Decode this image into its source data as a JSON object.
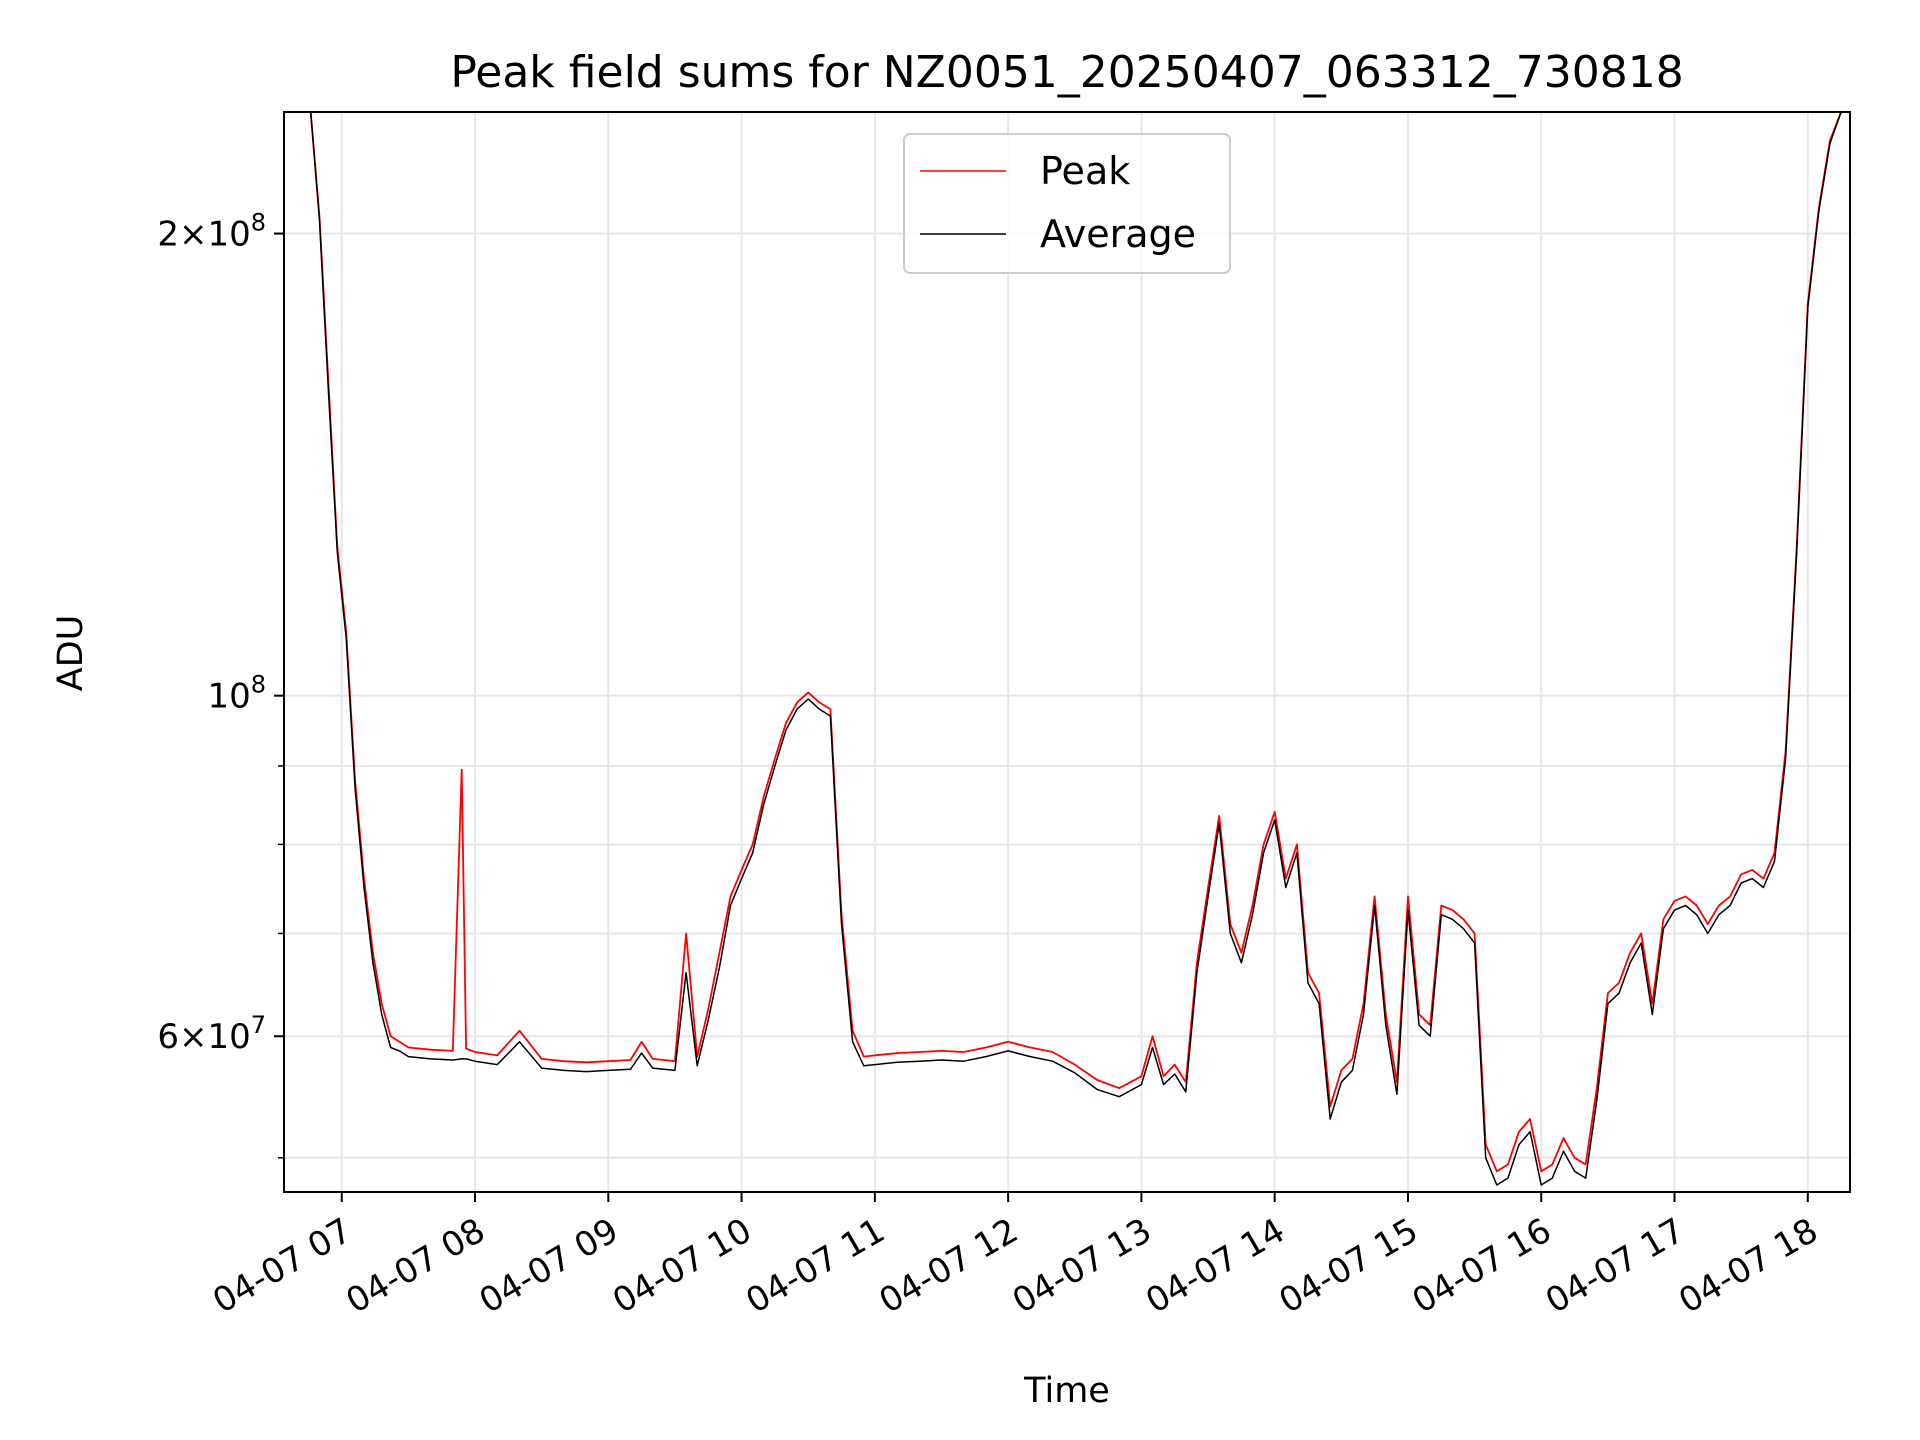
{
  "chart_data": {
    "type": "line",
    "title": "Peak field sums for NZ0051_20250407_063312_730818",
    "xlabel": "Time",
    "ylabel": "ADU",
    "yscale": "log",
    "grid": true,
    "legend": "top-center",
    "xlim": [
      "04-07 06:34",
      "04-07 18:19"
    ],
    "ylim": [
      47500000,
      240000000
    ],
    "x_ticks": [
      "04-07 07",
      "04-07 08",
      "04-07 09",
      "04-07 10",
      "04-07 11",
      "04-07 12",
      "04-07 13",
      "04-07 14",
      "04-07 15",
      "04-07 16",
      "04-07 17",
      "04-07 18"
    ],
    "y_major_ticks": [
      {
        "value": 60000000,
        "mantissa": "6",
        "exponent": "7"
      },
      {
        "value": 100000000,
        "mantissa": "",
        "exponent": "8"
      },
      {
        "value": 200000000,
        "mantissa": "2",
        "exponent": "8"
      }
    ],
    "y_minor_ticks": [
      50000000,
      70000000,
      80000000,
      90000000
    ],
    "series": [
      {
        "name": "Peak",
        "color": "#ff0000",
        "x": [
          "04-07 06:46",
          "04-07 06:50",
          "04-07 06:54",
          "04-07 06:58",
          "04-07 07:02",
          "04-07 07:06",
          "04-07 07:10",
          "04-07 07:14",
          "04-07 07:18",
          "04-07 07:22",
          "04-07 07:26",
          "04-07 07:30",
          "04-07 07:40",
          "04-07 07:50",
          "04-07 07:54",
          "04-07 07:56",
          "04-07 08:00",
          "04-07 08:10",
          "04-07 08:20",
          "04-07 08:30",
          "04-07 08:40",
          "04-07 08:50",
          "04-07 09:00",
          "04-07 09:10",
          "04-07 09:15",
          "04-07 09:20",
          "04-07 09:25",
          "04-07 09:30",
          "04-07 09:35",
          "04-07 09:40",
          "04-07 09:45",
          "04-07 09:50",
          "04-07 09:55",
          "04-07 10:00",
          "04-07 10:05",
          "04-07 10:10",
          "04-07 10:15",
          "04-07 10:20",
          "04-07 10:25",
          "04-07 10:30",
          "04-07 10:35",
          "04-07 10:40",
          "04-07 10:45",
          "04-07 10:50",
          "04-07 10:55",
          "04-07 11:00",
          "04-07 11:10",
          "04-07 11:20",
          "04-07 11:30",
          "04-07 11:40",
          "04-07 11:50",
          "04-07 12:00",
          "04-07 12:10",
          "04-07 12:20",
          "04-07 12:30",
          "04-07 12:40",
          "04-07 12:50",
          "04-07 13:00",
          "04-07 13:05",
          "04-07 13:10",
          "04-07 13:15",
          "04-07 13:20",
          "04-07 13:25",
          "04-07 13:30",
          "04-07 13:35",
          "04-07 13:40",
          "04-07 13:45",
          "04-07 13:50",
          "04-07 13:55",
          "04-07 14:00",
          "04-07 14:05",
          "04-07 14:10",
          "04-07 14:15",
          "04-07 14:20",
          "04-07 14:25",
          "04-07 14:30",
          "04-07 14:35",
          "04-07 14:40",
          "04-07 14:45",
          "04-07 14:50",
          "04-07 14:55",
          "04-07 15:00",
          "04-07 15:05",
          "04-07 15:10",
          "04-07 15:15",
          "04-07 15:20",
          "04-07 15:25",
          "04-07 15:30",
          "04-07 15:35",
          "04-07 15:40",
          "04-07 15:45",
          "04-07 15:50",
          "04-07 15:55",
          "04-07 16:00",
          "04-07 16:05",
          "04-07 16:10",
          "04-07 16:15",
          "04-07 16:20",
          "04-07 16:25",
          "04-07 16:30",
          "04-07 16:35",
          "04-07 16:40",
          "04-07 16:45",
          "04-07 16:50",
          "04-07 16:55",
          "04-07 17:00",
          "04-07 17:05",
          "04-07 17:10",
          "04-07 17:15",
          "04-07 17:20",
          "04-07 17:25",
          "04-07 17:30",
          "04-07 17:35",
          "04-07 17:40",
          "04-07 17:45",
          "04-07 17:50",
          "04-07 17:55",
          "04-07 18:00",
          "04-07 18:05",
          "04-07 18:10",
          "04-07 18:15"
        ],
        "y": [
          240000000,
          205000000,
          160000000,
          125000000,
          110000000,
          88000000,
          76000000,
          68000000,
          63000000,
          60000000,
          59500000,
          59000000,
          58800000,
          58700000,
          89500000,
          58900000,
          58600000,
          58300000,
          60500000,
          58000000,
          57800000,
          57700000,
          57800000,
          57900000,
          59500000,
          58000000,
          57900000,
          57800000,
          70000000,
          58200000,
          62500000,
          68000000,
          74000000,
          77000000,
          80000000,
          86000000,
          91000000,
          96000000,
          99000000,
          100500000,
          99000000,
          98000000,
          72000000,
          60500000,
          58200000,
          58300000,
          58500000,
          58600000,
          58700000,
          58600000,
          59000000,
          59500000,
          59000000,
          58600000,
          57500000,
          56200000,
          55500000,
          56500000,
          60000000,
          56500000,
          57500000,
          56000000,
          67000000,
          75000000,
          83500000,
          71000000,
          68000000,
          73000000,
          80000000,
          84000000,
          76000000,
          80000000,
          66000000,
          64000000,
          54000000,
          57000000,
          58000000,
          63000000,
          74000000,
          62000000,
          56000000,
          74000000,
          62000000,
          61000000,
          73000000,
          72500000,
          71500000,
          70000000,
          51000000,
          49000000,
          49500000,
          52000000,
          53000000,
          49000000,
          49500000,
          51500000,
          50000000,
          49500000,
          55500000,
          64000000,
          65000000,
          68000000,
          70000000,
          63000000,
          71500000,
          73500000,
          74000000,
          73000000,
          71000000,
          73000000,
          74000000,
          76500000,
          77000000,
          76000000,
          79000000,
          92000000,
          125000000,
          180000000,
          208000000,
          230000000,
          240000000
        ]
      },
      {
        "name": "Average",
        "color": "#000000",
        "x": [
          "04-07 06:46",
          "04-07 06:50",
          "04-07 06:54",
          "04-07 06:58",
          "04-07 07:02",
          "04-07 07:06",
          "04-07 07:10",
          "04-07 07:14",
          "04-07 07:18",
          "04-07 07:22",
          "04-07 07:26",
          "04-07 07:30",
          "04-07 07:40",
          "04-07 07:50",
          "04-07 07:54",
          "04-07 07:56",
          "04-07 08:00",
          "04-07 08:10",
          "04-07 08:20",
          "04-07 08:30",
          "04-07 08:40",
          "04-07 08:50",
          "04-07 09:00",
          "04-07 09:10",
          "04-07 09:15",
          "04-07 09:20",
          "04-07 09:25",
          "04-07 09:30",
          "04-07 09:35",
          "04-07 09:40",
          "04-07 09:45",
          "04-07 09:50",
          "04-07 09:55",
          "04-07 10:00",
          "04-07 10:05",
          "04-07 10:10",
          "04-07 10:15",
          "04-07 10:20",
          "04-07 10:25",
          "04-07 10:30",
          "04-07 10:35",
          "04-07 10:40",
          "04-07 10:45",
          "04-07 10:50",
          "04-07 10:55",
          "04-07 11:00",
          "04-07 11:10",
          "04-07 11:20",
          "04-07 11:30",
          "04-07 11:40",
          "04-07 11:50",
          "04-07 12:00",
          "04-07 12:10",
          "04-07 12:20",
          "04-07 12:30",
          "04-07 12:40",
          "04-07 12:50",
          "04-07 13:00",
          "04-07 13:05",
          "04-07 13:10",
          "04-07 13:15",
          "04-07 13:20",
          "04-07 13:25",
          "04-07 13:30",
          "04-07 13:35",
          "04-07 13:40",
          "04-07 13:45",
          "04-07 13:50",
          "04-07 13:55",
          "04-07 14:00",
          "04-07 14:05",
          "04-07 14:10",
          "04-07 14:15",
          "04-07 14:20",
          "04-07 14:25",
          "04-07 14:30",
          "04-07 14:35",
          "04-07 14:40",
          "04-07 14:45",
          "04-07 14:50",
          "04-07 14:55",
          "04-07 15:00",
          "04-07 15:05",
          "04-07 15:10",
          "04-07 15:15",
          "04-07 15:20",
          "04-07 15:25",
          "04-07 15:30",
          "04-07 15:35",
          "04-07 15:40",
          "04-07 15:45",
          "04-07 15:50",
          "04-07 15:55",
          "04-07 16:00",
          "04-07 16:05",
          "04-07 16:10",
          "04-07 16:15",
          "04-07 16:20",
          "04-07 16:25",
          "04-07 16:30",
          "04-07 16:35",
          "04-07 16:40",
          "04-07 16:45",
          "04-07 16:50",
          "04-07 16:55",
          "04-07 17:00",
          "04-07 17:05",
          "04-07 17:10",
          "04-07 17:15",
          "04-07 17:20",
          "04-07 17:25",
          "04-07 17:30",
          "04-07 17:35",
          "04-07 17:40",
          "04-07 17:45",
          "04-07 17:50",
          "04-07 17:55",
          "04-07 18:00",
          "04-07 18:05",
          "04-07 18:10",
          "04-07 18:15"
        ],
        "y": [
          240000000,
          204000000,
          158000000,
          124000000,
          109000000,
          87000000,
          75000000,
          67000000,
          62000000,
          59000000,
          58700000,
          58200000,
          58000000,
          57900000,
          58000000,
          58000000,
          57800000,
          57500000,
          59500000,
          57200000,
          57000000,
          56900000,
          57000000,
          57100000,
          58500000,
          57200000,
          57100000,
          57000000,
          66000000,
          57400000,
          61500000,
          66500000,
          73000000,
          76000000,
          79000000,
          85000000,
          90000000,
          95000000,
          98000000,
          99500000,
          98000000,
          97000000,
          71000000,
          59500000,
          57400000,
          57500000,
          57700000,
          57800000,
          57900000,
          57800000,
          58200000,
          58700000,
          58200000,
          57800000,
          56800000,
          55400000,
          54800000,
          55800000,
          59000000,
          55800000,
          56700000,
          55200000,
          66000000,
          74000000,
          82500000,
          70000000,
          67000000,
          72000000,
          79000000,
          83000000,
          75000000,
          79000000,
          65000000,
          63000000,
          53000000,
          56000000,
          57000000,
          62000000,
          73000000,
          61000000,
          55000000,
          72500000,
          61000000,
          60000000,
          72000000,
          71500000,
          70500000,
          69000000,
          50000000,
          48000000,
          48500000,
          51000000,
          52000000,
          48000000,
          48500000,
          50500000,
          49000000,
          48500000,
          54500000,
          63000000,
          64000000,
          67000000,
          69000000,
          62000000,
          70500000,
          72500000,
          73000000,
          72000000,
          70000000,
          72000000,
          73000000,
          75500000,
          76000000,
          75000000,
          78000000,
          91000000,
          124000000,
          179000000,
          207000000,
          229000000,
          240000000
        ]
      }
    ]
  }
}
